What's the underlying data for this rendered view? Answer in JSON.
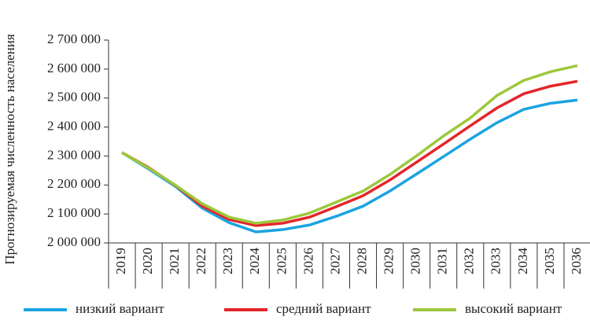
{
  "chart_data": {
    "type": "line",
    "y_label": "Прогнозируемая численность населения",
    "categories": [
      "2019",
      "2020",
      "2021",
      "2022",
      "2023",
      "2024",
      "2025",
      "2026",
      "2027",
      "2028",
      "2029",
      "2030",
      "2031",
      "2032",
      "2033",
      "2034",
      "2035",
      "2036"
    ],
    "series": [
      {
        "name": "низкий вариант",
        "color": "#1ba3e0",
        "values": [
          2312000,
          2255000,
          2195000,
          2120000,
          2070000,
          2038000,
          2046000,
          2062000,
          2092000,
          2127000,
          2179000,
          2238000,
          2298000,
          2358000,
          2415000,
          2461000,
          2482000,
          2493000
        ]
      },
      {
        "name": "средний вариант",
        "color": "#e3262a",
        "values": [
          2312000,
          2260000,
          2198000,
          2127000,
          2081000,
          2060000,
          2068000,
          2089000,
          2125000,
          2163000,
          2217000,
          2279000,
          2341000,
          2404000,
          2466000,
          2515000,
          2541000,
          2558000
        ]
      },
      {
        "name": "высокий вариант",
        "color": "#9dc83c",
        "values": [
          2312000,
          2258000,
          2199000,
          2135000,
          2089000,
          2068000,
          2079000,
          2103000,
          2141000,
          2179000,
          2236000,
          2301000,
          2369000,
          2431000,
          2509000,
          2561000,
          2591000,
          2612000
        ]
      }
    ],
    "ylim": [
      2000000,
      2700000
    ],
    "yticks": [
      {
        "value": 2000000,
        "label": "2 000 000"
      },
      {
        "value": 2100000,
        "label": "2 100 000"
      },
      {
        "value": 2200000,
        "label": "2 200 000"
      },
      {
        "value": 2300000,
        "label": "2 300 000"
      },
      {
        "value": 2400000,
        "label": "2 400 000"
      },
      {
        "value": 2500000,
        "label": "2 500 000"
      },
      {
        "value": 2600000,
        "label": "2 600 000"
      },
      {
        "value": 2700000,
        "label": "2 700 000"
      }
    ],
    "grid": false,
    "legend": "bottom"
  }
}
